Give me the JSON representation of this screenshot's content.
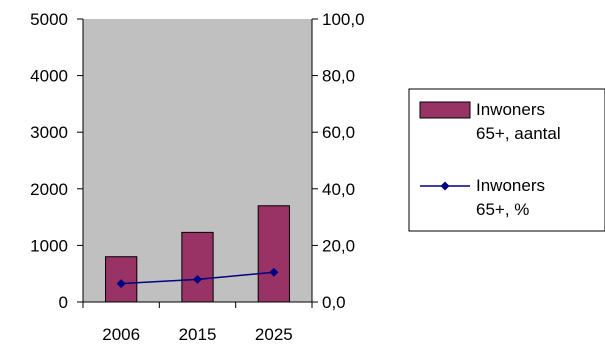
{
  "chart_data": {
    "type": "bar",
    "categories": [
      "2006",
      "2015",
      "2025"
    ],
    "series": [
      {
        "name": "Inwoners 65+, aantal",
        "name_lines": [
          "Inwoners",
          "65+, aantal"
        ],
        "type": "bar",
        "axis": "left",
        "values": [
          800,
          1230,
          1700
        ],
        "color": "#993366"
      },
      {
        "name": "Inwoners 65+, %",
        "name_lines": [
          "Inwoners",
          "65+, %"
        ],
        "type": "line",
        "axis": "right",
        "values": [
          6.5,
          8.0,
          10.5
        ],
        "color": "#000080"
      }
    ],
    "y_left": {
      "ylim": [
        0,
        5000
      ],
      "ticks": [
        0,
        1000,
        2000,
        3000,
        4000,
        5000
      ],
      "tick_labels": [
        "0",
        "1000",
        "2000",
        "3000",
        "4000",
        "5000"
      ]
    },
    "y_right": {
      "ylim": [
        0,
        100
      ],
      "ticks": [
        0,
        20,
        40,
        60,
        80,
        100
      ],
      "tick_labels": [
        "0,0",
        "20,0",
        "40,0",
        "60,0",
        "80,0",
        "100,0"
      ]
    },
    "plot_background": "#c0c0c0",
    "grid": false,
    "legend_position": "right"
  }
}
